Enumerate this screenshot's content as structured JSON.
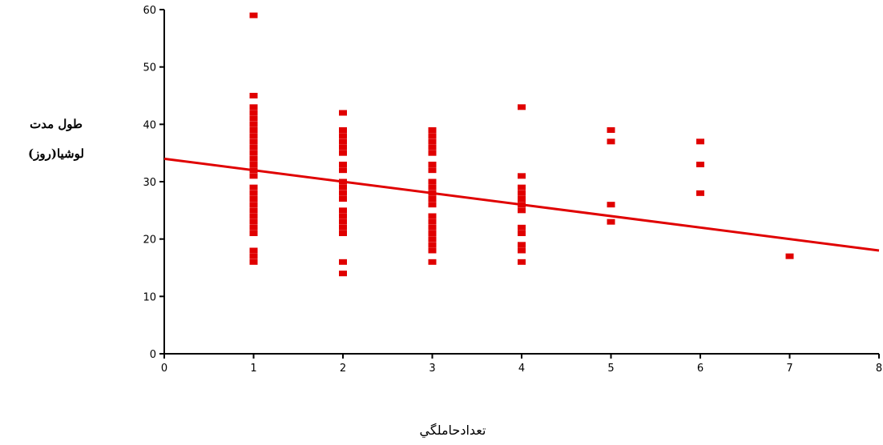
{
  "chart_data": {
    "type": "scatter",
    "title": "",
    "xlabel": "تعدادحاملگي",
    "ylabel_lines": [
      "طول مدت",
      "لوشيا(روز)"
    ],
    "xlim": [
      0,
      8
    ],
    "ylim": [
      0,
      60
    ],
    "x_ticks": [
      "0",
      "1",
      "2",
      "3",
      "4",
      "5",
      "6",
      "7",
      "8"
    ],
    "y_ticks": [
      "0",
      "10",
      "20",
      "30",
      "40",
      "50",
      "60"
    ],
    "grid": false,
    "colors": {
      "points": "#e00000",
      "line": "#e00000",
      "axis": "#000000"
    },
    "points": [
      {
        "x": 1,
        "y": 16
      },
      {
        "x": 1,
        "y": 17
      },
      {
        "x": 1,
        "y": 18
      },
      {
        "x": 1,
        "y": 21
      },
      {
        "x": 1,
        "y": 22
      },
      {
        "x": 1,
        "y": 23
      },
      {
        "x": 1,
        "y": 24
      },
      {
        "x": 1,
        "y": 25
      },
      {
        "x": 1,
        "y": 26
      },
      {
        "x": 1,
        "y": 27
      },
      {
        "x": 1,
        "y": 28
      },
      {
        "x": 1,
        "y": 29
      },
      {
        "x": 1,
        "y": 31
      },
      {
        "x": 1,
        "y": 32
      },
      {
        "x": 1,
        "y": 33
      },
      {
        "x": 1,
        "y": 34
      },
      {
        "x": 1,
        "y": 35
      },
      {
        "x": 1,
        "y": 36
      },
      {
        "x": 1,
        "y": 37
      },
      {
        "x": 1,
        "y": 38
      },
      {
        "x": 1,
        "y": 39
      },
      {
        "x": 1,
        "y": 40
      },
      {
        "x": 1,
        "y": 41
      },
      {
        "x": 1,
        "y": 42
      },
      {
        "x": 1,
        "y": 43
      },
      {
        "x": 1,
        "y": 45
      },
      {
        "x": 1,
        "y": 59
      },
      {
        "x": 2,
        "y": 14
      },
      {
        "x": 2,
        "y": 16
      },
      {
        "x": 2,
        "y": 21
      },
      {
        "x": 2,
        "y": 22
      },
      {
        "x": 2,
        "y": 23
      },
      {
        "x": 2,
        "y": 24
      },
      {
        "x": 2,
        "y": 25
      },
      {
        "x": 2,
        "y": 27
      },
      {
        "x": 2,
        "y": 28
      },
      {
        "x": 2,
        "y": 29
      },
      {
        "x": 2,
        "y": 30
      },
      {
        "x": 2,
        "y": 32
      },
      {
        "x": 2,
        "y": 33
      },
      {
        "x": 2,
        "y": 35
      },
      {
        "x": 2,
        "y": 36
      },
      {
        "x": 2,
        "y": 37
      },
      {
        "x": 2,
        "y": 38
      },
      {
        "x": 2,
        "y": 39
      },
      {
        "x": 2,
        "y": 42
      },
      {
        "x": 3,
        "y": 16
      },
      {
        "x": 3,
        "y": 18
      },
      {
        "x": 3,
        "y": 19
      },
      {
        "x": 3,
        "y": 20
      },
      {
        "x": 3,
        "y": 21
      },
      {
        "x": 3,
        "y": 22
      },
      {
        "x": 3,
        "y": 23
      },
      {
        "x": 3,
        "y": 24
      },
      {
        "x": 3,
        "y": 26
      },
      {
        "x": 3,
        "y": 27
      },
      {
        "x": 3,
        "y": 28
      },
      {
        "x": 3,
        "y": 29
      },
      {
        "x": 3,
        "y": 30
      },
      {
        "x": 3,
        "y": 32
      },
      {
        "x": 3,
        "y": 33
      },
      {
        "x": 3,
        "y": 35
      },
      {
        "x": 3,
        "y": 36
      },
      {
        "x": 3,
        "y": 37
      },
      {
        "x": 3,
        "y": 38
      },
      {
        "x": 3,
        "y": 39
      },
      {
        "x": 4,
        "y": 16
      },
      {
        "x": 4,
        "y": 18
      },
      {
        "x": 4,
        "y": 19
      },
      {
        "x": 4,
        "y": 21
      },
      {
        "x": 4,
        "y": 22
      },
      {
        "x": 4,
        "y": 25
      },
      {
        "x": 4,
        "y": 26
      },
      {
        "x": 4,
        "y": 27
      },
      {
        "x": 4,
        "y": 28
      },
      {
        "x": 4,
        "y": 29
      },
      {
        "x": 4,
        "y": 31
      },
      {
        "x": 4,
        "y": 43
      },
      {
        "x": 5,
        "y": 23
      },
      {
        "x": 5,
        "y": 26
      },
      {
        "x": 5,
        "y": 37
      },
      {
        "x": 5,
        "y": 39
      },
      {
        "x": 6,
        "y": 28
      },
      {
        "x": 6,
        "y": 33
      },
      {
        "x": 6,
        "y": 37
      },
      {
        "x": 7,
        "y": 17
      }
    ],
    "regression_line": {
      "x": [
        0,
        8
      ],
      "y": [
        34,
        18
      ]
    }
  }
}
